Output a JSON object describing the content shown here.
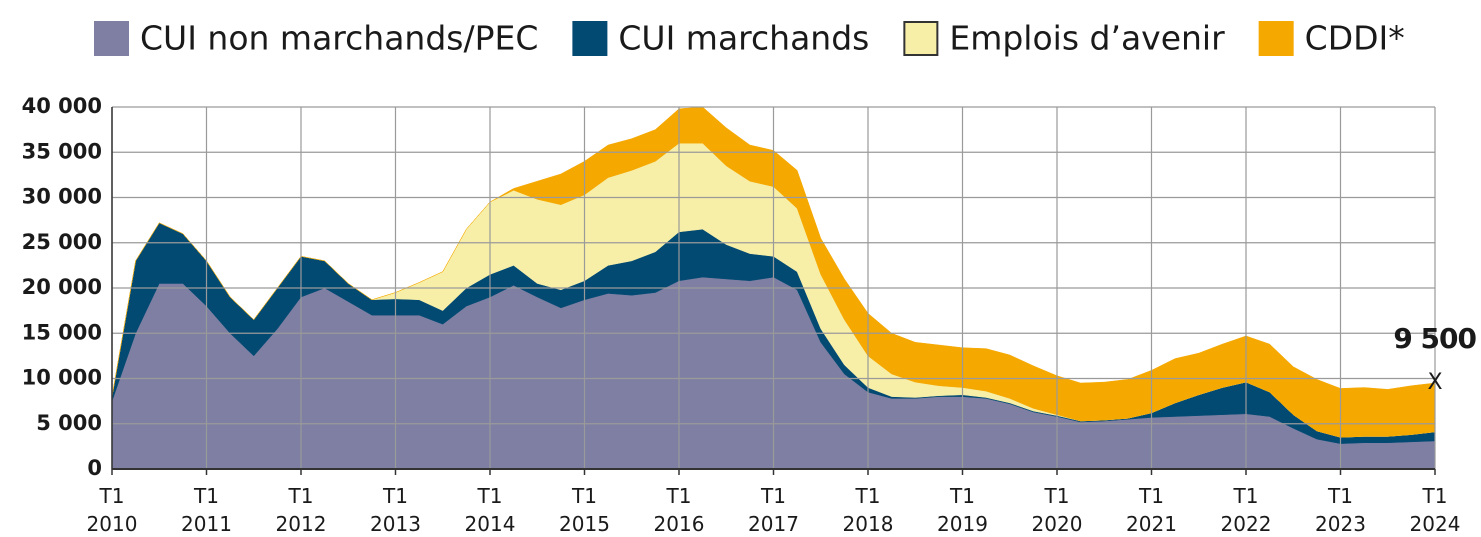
{
  "chart_data": {
    "type": "area",
    "categories": [
      "T1 2010",
      null,
      null,
      null,
      "T1 2011",
      null,
      null,
      null,
      "T1 2012",
      null,
      null,
      null,
      "T1 2013",
      null,
      null,
      null,
      "T1 2014",
      null,
      null,
      null,
      "T1 2015",
      null,
      null,
      null,
      "T1 2016",
      null,
      null,
      null,
      "T1 2017",
      null,
      null,
      null,
      "T1 2018",
      null,
      null,
      null,
      "T1 2019",
      null,
      null,
      null,
      "T1 2020",
      null,
      null,
      null,
      "T1 2021",
      null,
      null,
      null,
      "T1 2022",
      null,
      null,
      null,
      "T1 2023",
      null,
      null,
      null,
      "T1 2024"
    ],
    "stacked": true,
    "series": [
      {
        "name": "CUI non marchands/PEC",
        "color": "#7e7fa3",
        "values": [
          7500,
          15000,
          20500,
          20500,
          18000,
          15000,
          12500,
          15500,
          19000,
          20000,
          18500,
          17000,
          17000,
          17000,
          16000,
          18000,
          19000,
          20300,
          19000,
          17800,
          18700,
          19400,
          19200,
          19500,
          20800,
          21200,
          21000,
          20800,
          21200,
          19800,
          14000,
          10500,
          8500,
          7800,
          7800,
          8000,
          8000,
          7800,
          7200,
          6300,
          5800,
          5200,
          5300,
          5500,
          5700,
          5800,
          5900,
          6000,
          6100,
          5800,
          4500,
          3300,
          2800,
          2900,
          2900,
          3000,
          3100
        ]
      },
      {
        "name": "CUI marchands",
        "color": "#034a73",
        "values": [
          500,
          8000,
          6700,
          5500,
          5000,
          4000,
          4000,
          4500,
          4500,
          3000,
          2000,
          1700,
          1800,
          1700,
          1500,
          2000,
          2500,
          2200,
          1500,
          2000,
          2100,
          3100,
          3800,
          4500,
          5400,
          5300,
          3800,
          3000,
          2300,
          2000,
          1500,
          1000,
          500,
          200,
          100,
          100,
          200,
          100,
          100,
          100,
          100,
          100,
          100,
          100,
          500,
          1500,
          2300,
          3000,
          3500,
          2700,
          1500,
          900,
          700,
          700,
          700,
          800,
          1000
        ]
      },
      {
        "name": "Emplois d’avenir",
        "color": "#f7efa8",
        "values": [
          0,
          0,
          0,
          0,
          0,
          0,
          0,
          0,
          0,
          0,
          0,
          0,
          700,
          1900,
          4300,
          6500,
          8000,
          8300,
          9300,
          9400,
          9500,
          9700,
          10000,
          10000,
          9800,
          9500,
          8700,
          8000,
          7700,
          7000,
          6000,
          5000,
          3500,
          2500,
          1700,
          1100,
          800,
          700,
          500,
          300,
          100,
          0,
          0,
          0,
          0,
          0,
          0,
          0,
          0,
          0,
          0,
          0,
          0,
          0,
          0,
          0,
          0
        ]
      },
      {
        "name": "CDDI*",
        "color": "#f5a800",
        "values": [
          0,
          0,
          0,
          0,
          0,
          0,
          0,
          0,
          0,
          0,
          0,
          0,
          0,
          0,
          0,
          0,
          0,
          200,
          2000,
          3400,
          3700,
          3600,
          3500,
          3500,
          3800,
          4000,
          4200,
          4000,
          4000,
          4200,
          4000,
          4500,
          4700,
          4500,
          4400,
          4500,
          4400,
          4700,
          4800,
          4700,
          4300,
          4200,
          4200,
          4300,
          4700,
          4900,
          4600,
          4800,
          5100,
          5300,
          5300,
          5700,
          5400,
          5400,
          5200,
          5400,
          5400
        ]
      }
    ],
    "ylim": [
      0,
      40000
    ],
    "yticks": [
      0,
      {
        "value": 5000,
        "label": "5 000"
      },
      {
        "value": 10000,
        "label": "10 000"
      },
      {
        "value": 15000,
        "label": "15 000"
      },
      {
        "value": 20000,
        "label": "20 000"
      },
      {
        "value": 25000,
        "label": "25 000"
      },
      {
        "value": 30000,
        "label": "30 000"
      },
      {
        "value": 35000,
        "label": "35 000"
      },
      {
        "value": 40000,
        "label": "40 000"
      }
    ],
    "grid": true,
    "annotation": {
      "text": "9 500",
      "marker": "X"
    }
  }
}
